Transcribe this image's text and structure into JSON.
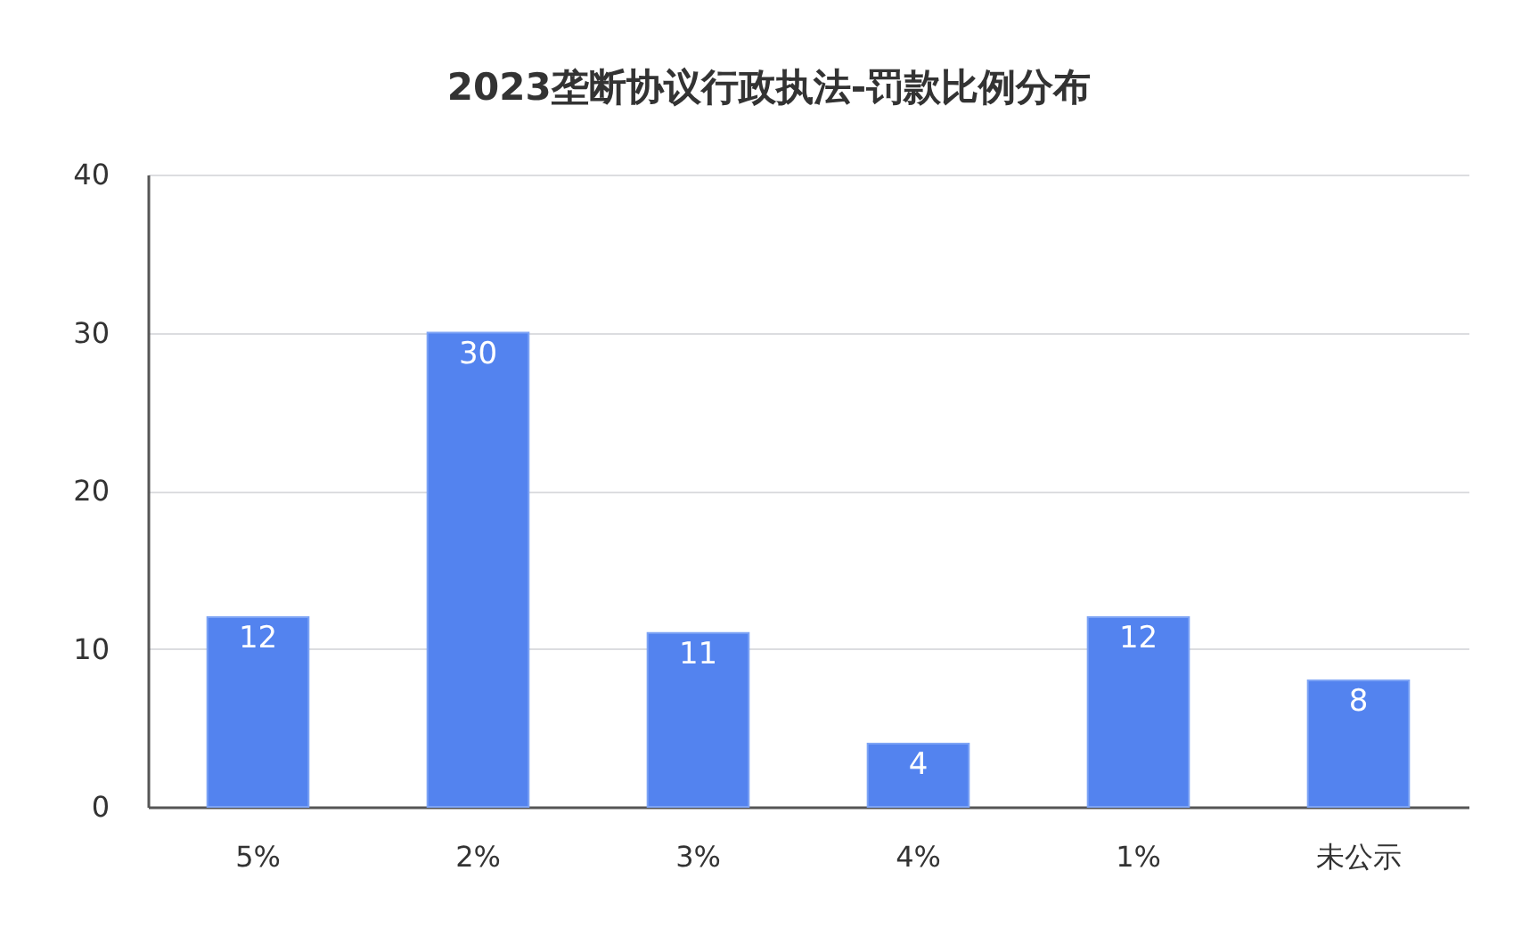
{
  "chart_data": {
    "type": "bar",
    "title": "2023垄断协议行政执法-罚款比例分布",
    "categories": [
      "5%",
      "2%",
      "3%",
      "4%",
      "1%",
      "未公示"
    ],
    "values": [
      12,
      30,
      11,
      4,
      12,
      8
    ],
    "color": "#5383ef",
    "ylim": [
      0,
      40
    ],
    "yticks": [
      0,
      10,
      20,
      30,
      40
    ],
    "grid": "y",
    "data_labels": true
  }
}
